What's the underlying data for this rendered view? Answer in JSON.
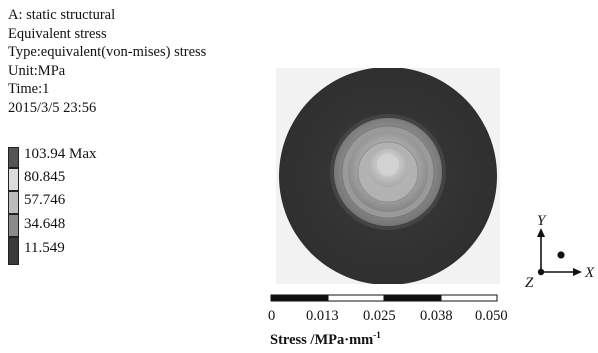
{
  "info": {
    "analysis": "A: static structural",
    "result": "Equivalent stress",
    "type": "Type:equivalent(von-mises) stress",
    "unit": "Unit:MPa",
    "time": "Time:1",
    "timestamp": "2015/3/5 23:56"
  },
  "legend": {
    "items": [
      {
        "label": "103.94  Max",
        "color": "#555555"
      },
      {
        "label": "80.845",
        "color": "#dcdcdc"
      },
      {
        "label": "57.746",
        "color": "#bdbdbd"
      },
      {
        "label": "34.648",
        "color": "#8a8a8a"
      },
      {
        "label": "11.549",
        "color": "#3a3a3a"
      }
    ]
  },
  "scale_bar": {
    "ticks": [
      "0",
      "0.013",
      "0.025",
      "0.038",
      "0.050"
    ],
    "title": "Stress /MPa·mm",
    "title_sup": "-1"
  },
  "axes": {
    "x": "X",
    "y": "Y",
    "z": "Z"
  },
  "colors": {
    "outer_disc": "#333333",
    "background_panel": "#f2f2f2"
  }
}
